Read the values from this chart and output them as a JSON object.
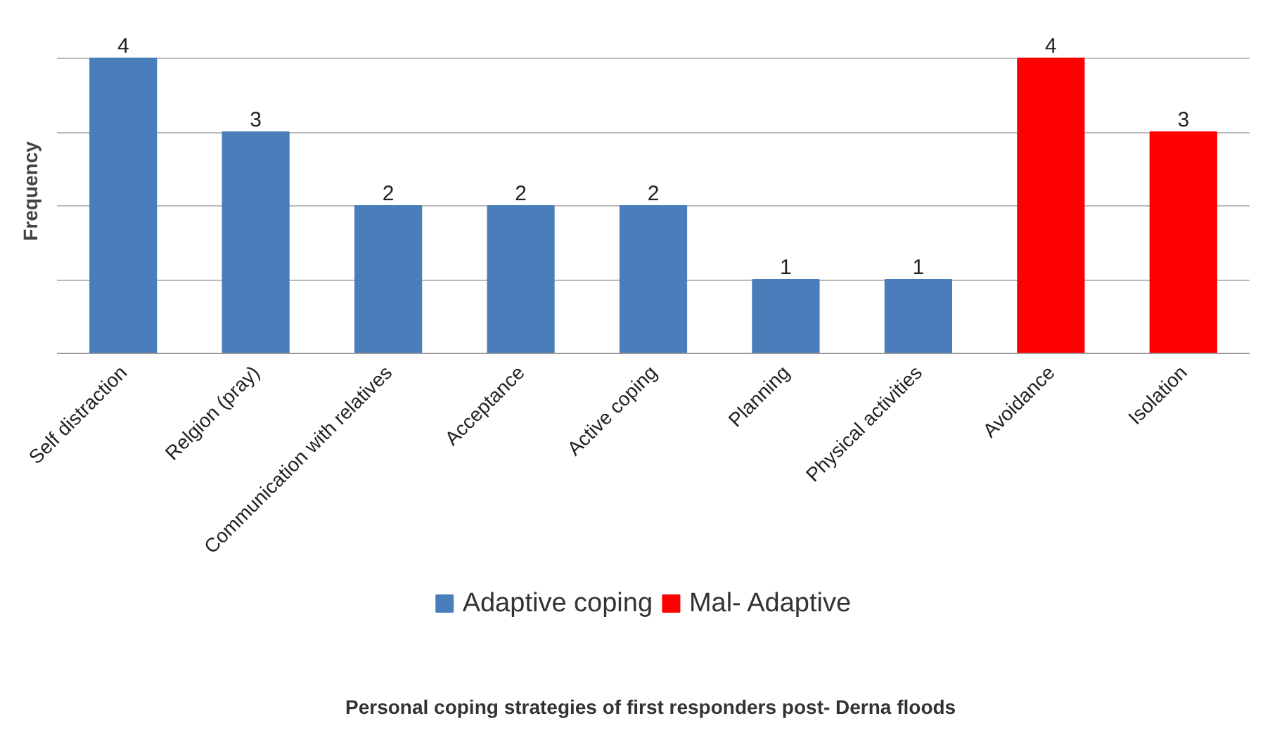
{
  "chart_data": {
    "type": "bar",
    "title": "Personal  coping strategies of first responders post- Derna floods",
    "ylabel": "Frequency",
    "categories": [
      "Self distraction",
      "Relgion (pray)",
      "Communication with relatives",
      "Acceptance",
      "Active coping",
      "Planning",
      "Physical activities",
      "Avoidance",
      "Isolation"
    ],
    "series": [
      {
        "name": "Adaptive coping",
        "color": "#4a7ebb",
        "values": [
          4,
          3,
          2,
          2,
          2,
          1,
          1,
          null,
          null
        ]
      },
      {
        "name": "Mal- Adaptive",
        "color": "#ff0000",
        "values": [
          null,
          null,
          null,
          null,
          null,
          null,
          null,
          4,
          3
        ]
      }
    ],
    "grid": "y",
    "legend": "bottom",
    "data_labels": true,
    "tick_labels": "x"
  }
}
